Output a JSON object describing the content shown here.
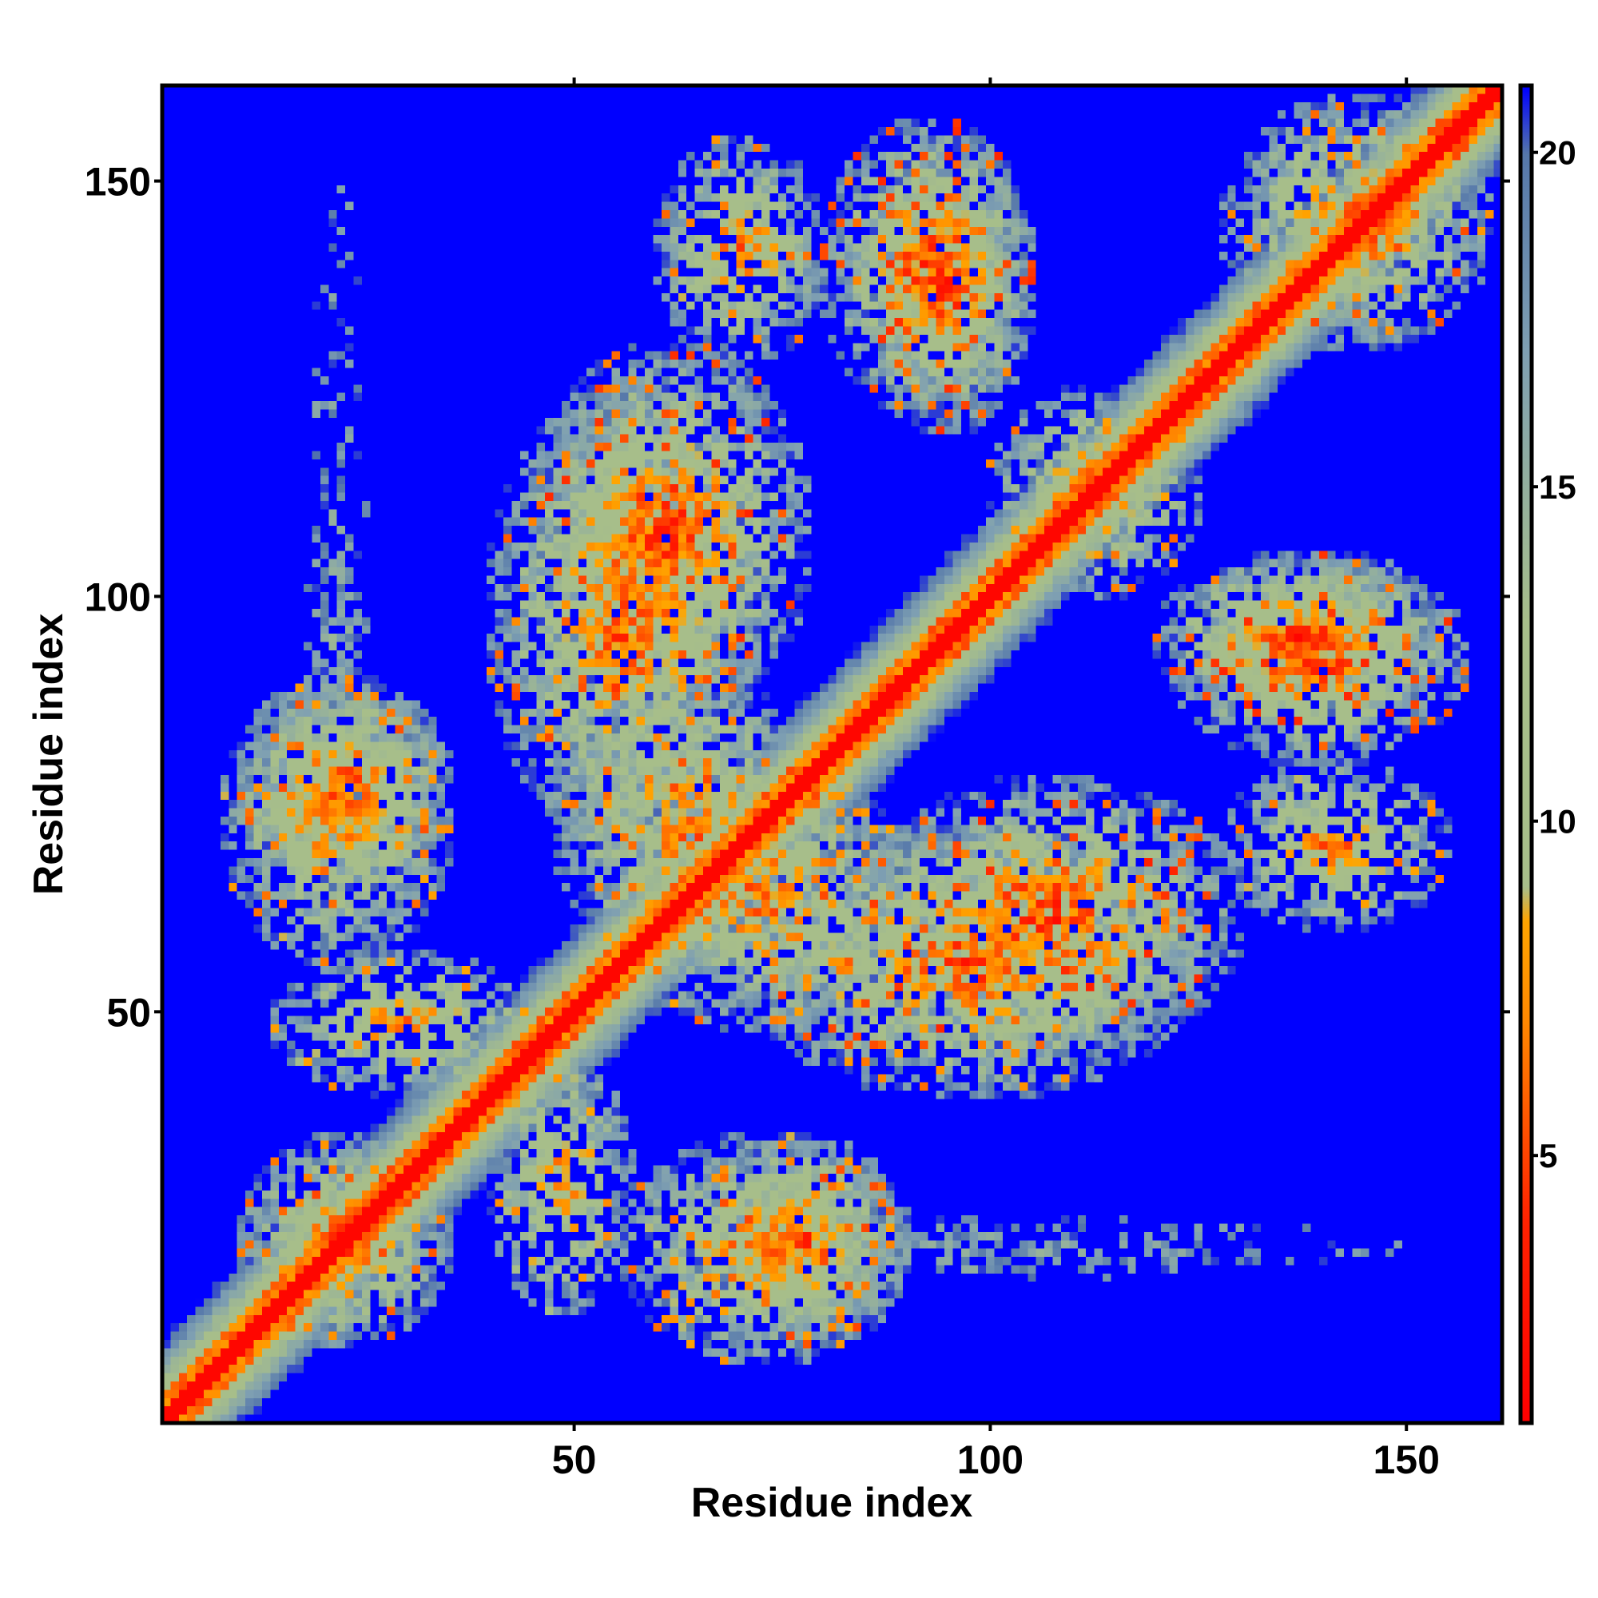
{
  "chart_data": {
    "type": "heatmap",
    "title": "",
    "xlabel": "Residue index",
    "ylabel": "Residue index",
    "n_residues": 161,
    "xlim": [
      1,
      161
    ],
    "ylim": [
      1,
      161
    ],
    "x_ticks": [
      50,
      100,
      150
    ],
    "y_ticks": [
      50,
      100,
      150
    ],
    "colorbar": {
      "range": [
        1,
        21
      ],
      "ticks": [
        5,
        10,
        15,
        20
      ],
      "color_stops": [
        {
          "value": 1,
          "color": "#ff0000"
        },
        {
          "value": 4,
          "color": "#ff2200"
        },
        {
          "value": 7,
          "color": "#ff8800"
        },
        {
          "value": 8.5,
          "color": "#ffa500"
        },
        {
          "value": 9,
          "color": "#a7be8a"
        },
        {
          "value": 13,
          "color": "#a7be8a"
        },
        {
          "value": 17,
          "color": "#7fa0b2"
        },
        {
          "value": 20,
          "color": "#5577aa"
        },
        {
          "value": 21,
          "color": "#0000ff"
        }
      ]
    },
    "background_value": 21,
    "diagonal_band_halfwidth": 2.5,
    "contact_blocks": [
      {
        "x": [
          10,
          35
        ],
        "y": [
          10,
          35
        ],
        "min": 5,
        "density": 0.7
      },
      {
        "x": [
          8,
          35
        ],
        "y": [
          56,
          90
        ],
        "min": 6,
        "density": 0.55
      },
      {
        "x": [
          56,
          90
        ],
        "y": [
          8,
          35
        ],
        "min": 6,
        "density": 0.55
      },
      {
        "x": [
          40,
          57
        ],
        "y": [
          14,
          45
        ],
        "min": 7,
        "density": 0.5
      },
      {
        "x": [
          14,
          45
        ],
        "y": [
          40,
          57
        ],
        "min": 7,
        "density": 0.5
      },
      {
        "x": [
          65,
          90
        ],
        "y": [
          10,
          35
        ],
        "min": 5,
        "density": 0.6
      },
      {
        "x": [
          10,
          35
        ],
        "y": [
          65,
          90
        ],
        "min": 5,
        "density": 0.6
      },
      {
        "x": [
          48,
          80
        ],
        "y": [
          55,
          90
        ],
        "min": 6,
        "density": 0.55
      },
      {
        "x": [
          55,
          90
        ],
        "y": [
          48,
          80
        ],
        "min": 6,
        "density": 0.55
      },
      {
        "x": [
          40,
          72
        ],
        "y": [
          70,
          125
        ],
        "min": 5,
        "density": 0.55
      },
      {
        "x": [
          70,
          125
        ],
        "y": [
          40,
          72
        ],
        "min": 5,
        "density": 0.55
      },
      {
        "x": [
          60,
          80
        ],
        "y": [
          128,
          155
        ],
        "min": 6,
        "density": 0.5
      },
      {
        "x": [
          128,
          155
        ],
        "y": [
          60,
          80
        ],
        "min": 6,
        "density": 0.5
      },
      {
        "x": [
          85,
          105
        ],
        "y": [
          120,
          155
        ],
        "min": 4,
        "density": 0.55
      },
      {
        "x": [
          120,
          155
        ],
        "y": [
          85,
          105
        ],
        "min": 4,
        "density": 0.55
      },
      {
        "x": [
          85,
          130
        ],
        "y": [
          45,
          78
        ],
        "min": 4,
        "density": 0.55
      },
      {
        "x": [
          45,
          78
        ],
        "y": [
          85,
          130
        ],
        "min": 4,
        "density": 0.55
      },
      {
        "x": [
          122,
          157
        ],
        "y": [
          80,
          105
        ],
        "min": 4,
        "density": 0.55
      },
      {
        "x": [
          80,
          105
        ],
        "y": [
          122,
          157
        ],
        "min": 4,
        "density": 0.55
      },
      {
        "x": [
          128,
          160
        ],
        "y": [
          130,
          160
        ],
        "min": 5,
        "density": 0.5
      },
      {
        "x": [
          100,
          125
        ],
        "y": [
          100,
          125
        ],
        "min": 6,
        "density": 0.5
      }
    ],
    "sparse_patches": [
      {
        "x": [
          18,
          25
        ],
        "y": [
          55,
          150
        ],
        "min": 17,
        "density": 0.15
      },
      {
        "x": [
          55,
          150
        ],
        "y": [
          18,
          25
        ],
        "min": 17,
        "density": 0.15
      },
      {
        "x": [
          88,
          105
        ],
        "y": [
          18,
          25
        ],
        "min": 16,
        "density": 0.2
      },
      {
        "x": [
          18,
          25
        ],
        "y": [
          88,
          105
        ],
        "min": 16,
        "density": 0.2
      }
    ]
  }
}
